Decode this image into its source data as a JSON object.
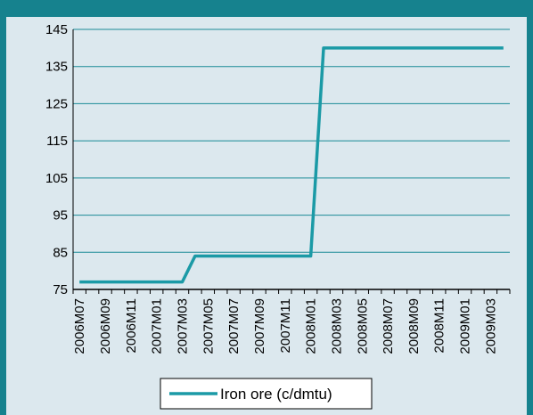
{
  "chart_data": {
    "type": "line",
    "categories": [
      "2006M07",
      null,
      "2006M09",
      null,
      "2006M11",
      null,
      "2007M01",
      null,
      "2007M03",
      null,
      "2007M05",
      null,
      "2007M07",
      null,
      "2007M09",
      null,
      "2007M11",
      null,
      "2008M01",
      null,
      "2008M03",
      null,
      "2008M05",
      null,
      "2008M07",
      null,
      "2008M09",
      null,
      "2008M11",
      null,
      "2009M01",
      null,
      "2009M03",
      null
    ],
    "series": [
      {
        "name": "Iron ore (c/dmtu)",
        "color": "#1b9aa6",
        "values": [
          77,
          77,
          77,
          77,
          77,
          77,
          77,
          77,
          77,
          84,
          84,
          84,
          84,
          84,
          84,
          84,
          84,
          84,
          84,
          140,
          140,
          140,
          140,
          140,
          140,
          140,
          140,
          140,
          140,
          140,
          140,
          140,
          140,
          140
        ]
      }
    ],
    "ylim": [
      75,
      145
    ],
    "yticks": [
      75,
      85,
      95,
      105,
      115,
      125,
      135,
      145
    ],
    "grid": true
  }
}
